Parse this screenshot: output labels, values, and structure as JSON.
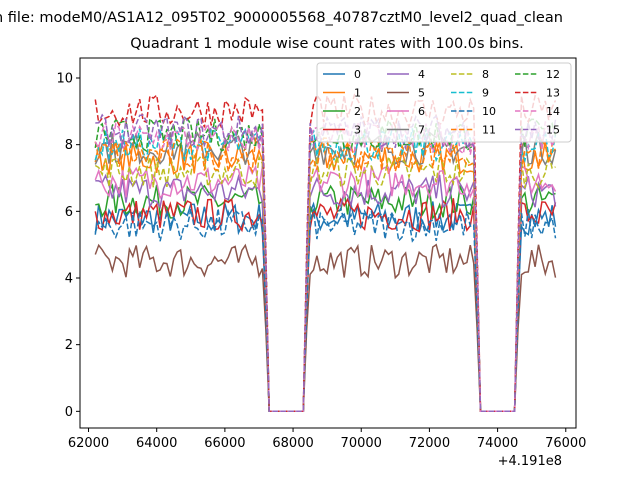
{
  "suptitle": "n file: modeM0/AS1A12_095T02_9000005568_40787cztM0_level2_quad_clean",
  "chart_data": {
    "type": "line",
    "title": "Quadrant 1 module wise count rates with 100.0s bins.",
    "xlabel": "",
    "ylabel": "",
    "x_offset_label": "+4.191e8",
    "xlim": [
      61750,
      76300
    ],
    "ylim": [
      -0.5,
      10.6
    ],
    "x_ticks": [
      62000,
      64000,
      66000,
      68000,
      70000,
      72000,
      74000,
      76000
    ],
    "x_tick_labels": [
      "62000",
      "64000",
      "66000",
      "68000",
      "70000",
      "72000",
      "74000",
      "76000"
    ],
    "y_ticks": [
      0,
      2,
      4,
      6,
      8,
      10
    ],
    "y_tick_labels": [
      "0",
      "2",
      "4",
      "6",
      "8",
      "10"
    ],
    "grid": false,
    "legend_position": "top-right",
    "x_range": [
      62200,
      75750
    ],
    "bin_step": 100,
    "gaps": [
      [
        67200,
        68400
      ],
      [
        73400,
        74600
      ]
    ],
    "series": [
      {
        "name": "0",
        "color": "#1f77b4",
        "dash": "solid",
        "level": 5.8
      },
      {
        "name": "1",
        "color": "#ff7f0e",
        "dash": "solid",
        "level": 7.6
      },
      {
        "name": "2",
        "color": "#2ca02c",
        "dash": "solid",
        "level": 6.3
      },
      {
        "name": "3",
        "color": "#d62728",
        "dash": "solid",
        "level": 5.9
      },
      {
        "name": "4",
        "color": "#9467bd",
        "dash": "solid",
        "level": 6.6
      },
      {
        "name": "5",
        "color": "#8c564b",
        "dash": "solid",
        "level": 4.5
      },
      {
        "name": "6",
        "color": "#e377c2",
        "dash": "solid",
        "level": 6.9
      },
      {
        "name": "7",
        "color": "#7f7f7f",
        "dash": "solid",
        "level": 7.9
      },
      {
        "name": "8",
        "color": "#bcbd22",
        "dash": "dashed",
        "level": 7.2
      },
      {
        "name": "9",
        "color": "#17becf",
        "dash": "dashed",
        "level": 8.0
      },
      {
        "name": "10",
        "color": "#1f77b4",
        "dash": "dashed",
        "level": 5.6
      },
      {
        "name": "11",
        "color": "#ff7f0e",
        "dash": "dashed",
        "level": 7.7
      },
      {
        "name": "12",
        "color": "#2ca02c",
        "dash": "dashed",
        "level": 8.3
      },
      {
        "name": "13",
        "color": "#d62728",
        "dash": "dashed",
        "level": 9.0
      },
      {
        "name": "14",
        "color": "#e377c2",
        "dash": "dashed",
        "level": 8.2
      },
      {
        "name": "15",
        "color": "#9467bd",
        "dash": "dashed",
        "level": 8.4
      }
    ]
  }
}
